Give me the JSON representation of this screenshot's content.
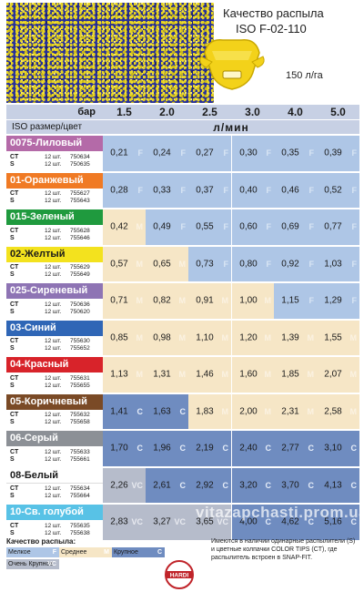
{
  "header": {
    "title_line1": "Качество распыла",
    "title_line2": "ISO F-02-110",
    "flow_note": "150 л/га"
  },
  "table": {
    "pressure_label": "бар",
    "pressures": [
      "1.5",
      "2.0",
      "2.5",
      "3.0",
      "4.0",
      "5.0"
    ],
    "size_label": "ISO размер/цвет",
    "unit": "л/мин",
    "nozzles": [
      {
        "name": "0075-Лиловый",
        "color": "#b46aa8",
        "ct_qty": "12 шт.",
        "ct_code": "750634",
        "s_qty": "12 шт.",
        "s_code": "750635",
        "values": [
          "0,21",
          "0,24",
          "0,27",
          "0,30",
          "0,35",
          "0,39"
        ],
        "quality": [
          "F",
          "F",
          "F",
          "F",
          "F",
          "F"
        ]
      },
      {
        "name": "01-Оранжевый",
        "color": "#f07a24",
        "ct_qty": "12 шт.",
        "ct_code": "755627",
        "s_qty": "12 шт.",
        "s_code": "755643",
        "values": [
          "0,28",
          "0,33",
          "0,37",
          "0,40",
          "0,46",
          "0,52"
        ],
        "quality": [
          "F",
          "F",
          "F",
          "F",
          "F",
          "F"
        ]
      },
      {
        "name": "015-Зеленый",
        "color": "#1f9a3e",
        "ct_qty": "12 шт.",
        "ct_code": "755628",
        "s_qty": "12 шт.",
        "s_code": "755646",
        "values": [
          "0,42",
          "0,49",
          "0,55",
          "0,60",
          "0,69",
          "0,77"
        ],
        "quality": [
          "M",
          "F",
          "F",
          "F",
          "F",
          "F"
        ]
      },
      {
        "name": "02-Желтый",
        "color": "#f3e21e",
        "ct_qty": "12 шт.",
        "ct_code": "755629",
        "s_qty": "12 шт.",
        "s_code": "755649",
        "values": [
          "0,57",
          "0,65",
          "0,73",
          "0,80",
          "0,92",
          "1,03"
        ],
        "quality": [
          "M",
          "M",
          "F",
          "F",
          "F",
          "F"
        ]
      },
      {
        "name": "025-Сиреневый",
        "color": "#8e74b4",
        "ct_qty": "12 шт.",
        "ct_code": "750636",
        "s_qty": "12 шт.",
        "s_code": "750620",
        "values": [
          "0,71",
          "0,82",
          "0,91",
          "1,00",
          "1,15",
          "1,29"
        ],
        "quality": [
          "M",
          "M",
          "M",
          "M",
          "F",
          "F"
        ]
      },
      {
        "name": "03-Синий",
        "color": "#2f66b6",
        "ct_qty": "12 шт.",
        "ct_code": "755630",
        "s_qty": "12 шт.",
        "s_code": "755652",
        "values": [
          "0,85",
          "0,98",
          "1,10",
          "1,20",
          "1,39",
          "1,55"
        ],
        "quality": [
          "M",
          "M",
          "M",
          "M",
          "M",
          "M"
        ]
      },
      {
        "name": "04-Красный",
        "color": "#d8232a",
        "ct_qty": "12 шт.",
        "ct_code": "755631",
        "s_qty": "12 шт.",
        "s_code": "755655",
        "values": [
          "1,13",
          "1,31",
          "1,46",
          "1,60",
          "1,85",
          "2,07"
        ],
        "quality": [
          "M",
          "M",
          "M",
          "M",
          "M",
          "M"
        ]
      },
      {
        "name": "05-Коричневый",
        "color": "#7a4a26",
        "ct_qty": "12 шт.",
        "ct_code": "755632",
        "s_qty": "12 шт.",
        "s_code": "755658",
        "values": [
          "1,41",
          "1,63",
          "1,83",
          "2,00",
          "2,31",
          "2,58"
        ],
        "quality": [
          "C",
          "C",
          "M",
          "M",
          "M",
          "M"
        ]
      },
      {
        "name": "06-Серый",
        "color": "#8c9096",
        "ct_qty": "12 шт.",
        "ct_code": "755633",
        "s_qty": "12 шт.",
        "s_code": "755661",
        "values": [
          "1,70",
          "1,96",
          "2,19",
          "2,40",
          "2,77",
          "3,10"
        ],
        "quality": [
          "C",
          "C",
          "C",
          "C",
          "C",
          "C"
        ]
      },
      {
        "name": "08-Белый",
        "color": "#ffffff",
        "ct_qty": "12 шт.",
        "ct_code": "755634",
        "s_qty": "12 шт.",
        "s_code": "755664",
        "values": [
          "2,26",
          "2,61",
          "2,92",
          "3,20",
          "3,70",
          "4,13"
        ],
        "quality": [
          "VC",
          "C",
          "C",
          "C",
          "C",
          "C"
        ]
      },
      {
        "name": "10-Св. голубой",
        "color": "#58c2e6",
        "ct_qty": "12 шт.",
        "ct_code": "755635",
        "s_qty": "12 шт.",
        "s_code": "755638",
        "values": [
          "2,83",
          "3,27",
          "3,65",
          "4,00",
          "4,62",
          "5,16"
        ],
        "quality": [
          "VC",
          "VC",
          "VC",
          "C",
          "C",
          "C"
        ]
      }
    ]
  },
  "quality_colors": {
    "F": "#aec6e6",
    "M": "#f6e6c6",
    "C": "#6f8cc0",
    "VC": "#b6bccb"
  },
  "quality_label_colors": {
    "F": "#d9e6f4",
    "M": "#fbf2e2",
    "C": "#e6edf8",
    "VC": "#e8eaf0"
  },
  "legend": {
    "title": "Качество распыла:",
    "items": [
      {
        "label": "Мелкое",
        "code": "F",
        "q": "F"
      },
      {
        "label": "Среднее",
        "code": "M",
        "q": "M"
      },
      {
        "label": "Крупное",
        "code": "C",
        "q": "C"
      },
      {
        "label": "Очень Крупное",
        "code": "VC",
        "q": "VC"
      }
    ]
  },
  "footnote": "Имеются в наличии одинарные распылители (S) и цветные колпачки COLOR TIPS (CT), где распылитель встроен в SNAP-FIT.",
  "logo_text": "HARDI",
  "watermark": "vitazapchasti.prom.ua"
}
